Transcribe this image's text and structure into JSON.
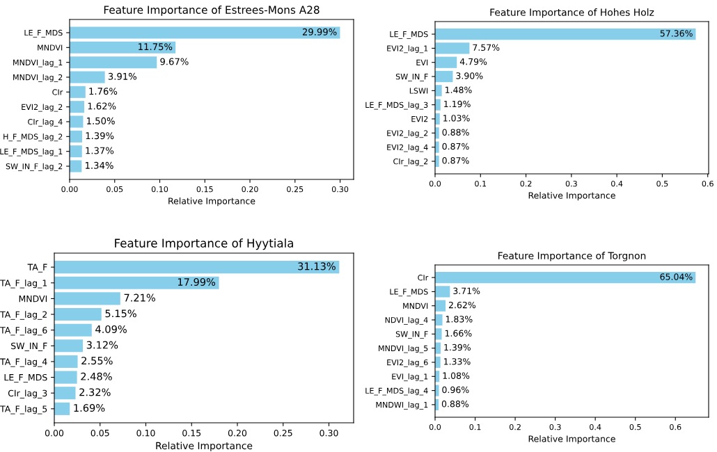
{
  "chart_data": [
    {
      "type": "bar",
      "orientation": "horizontal",
      "title": "Feature Importance of Estrees-Mons A28",
      "xlabel": "Relative Importance",
      "categories": [
        "LE_F_MDS",
        "MNDVI",
        "MNDVI_lag_1",
        "MNDVI_lag_2",
        "CIr",
        "EVI2_lag_2",
        "CIr_lag_4",
        "H_F_MDS_lag_2",
        "LE_F_MDS_lag_1",
        "SW_IN_F_lag_2"
      ],
      "values": [
        0.2999,
        0.1175,
        0.0967,
        0.0391,
        0.0176,
        0.0162,
        0.015,
        0.0139,
        0.0137,
        0.0134
      ],
      "value_labels": [
        "29.99%",
        "11.75%",
        "9.67%",
        "3.91%",
        "1.76%",
        "1.62%",
        "1.50%",
        "1.39%",
        "1.37%",
        "1.34%"
      ],
      "color": "#87ceeb",
      "xlim": [
        0,
        0.315
      ],
      "xticks": [
        {
          "value": 0,
          "label": "0.00"
        },
        0.05,
        {
          "value": 0.1,
          "label": "0.10"
        },
        0.15,
        {
          "value": 0.2,
          "label": "0.20"
        },
        0.25,
        {
          "value": 0.3,
          "label": "0.30"
        }
      ],
      "grid": false,
      "legend": false
    },
    {
      "type": "bar",
      "orientation": "horizontal",
      "title": "Feature Importance of Hohes Holz",
      "xlabel": "Relative Importance",
      "categories": [
        "LE_F_MDS",
        "EVI2_lag_1",
        "EVI",
        "SW_IN_F",
        "LSWI",
        "LE_F_MDS_lag_3",
        "EVI2",
        "EVI2_lag_2",
        "EVI2_lag_4",
        "CIr_lag_2"
      ],
      "values": [
        0.5736,
        0.0757,
        0.0479,
        0.039,
        0.0148,
        0.0119,
        0.0103,
        0.0088,
        0.0087,
        0.0087
      ],
      "value_labels": [
        "57.36%",
        "7.57%",
        "4.79%",
        "3.90%",
        "1.48%",
        "1.19%",
        "1.03%",
        "0.88%",
        "0.87%",
        "0.87%"
      ],
      "color": "#87ceeb",
      "xlim": [
        0,
        0.602
      ],
      "xticks": [
        {
          "value": 0,
          "label": "0.0"
        },
        0.1,
        0.2,
        0.3,
        0.4,
        0.5,
        0.6
      ],
      "grid": false,
      "legend": false
    },
    {
      "type": "bar",
      "orientation": "horizontal",
      "title": "Feature Importance of Hyytiala",
      "xlabel": "Relative Importance",
      "categories": [
        "TA_F",
        "TA_F_lag_1",
        "MNDVI",
        "TA_F_lag_2",
        "TA_F_lag_6",
        "SW_IN_F",
        "TA_F_lag_4",
        "LE_F_MDS",
        "CIr_lag_3",
        "TA_F_lag_5"
      ],
      "values": [
        0.3113,
        0.1799,
        0.0721,
        0.0515,
        0.0409,
        0.0312,
        0.0255,
        0.0248,
        0.0232,
        0.0169
      ],
      "value_labels": [
        "31.13%",
        "17.99%",
        "7.21%",
        "5.15%",
        "4.09%",
        "3.12%",
        "2.55%",
        "2.48%",
        "2.32%",
        "1.69%"
      ],
      "color": "#87ceeb",
      "xlim": [
        0,
        0.327
      ],
      "xticks": [
        {
          "value": 0,
          "label": "0.00"
        },
        0.05,
        {
          "value": 0.1,
          "label": "0.10"
        },
        0.15,
        {
          "value": 0.2,
          "label": "0.20"
        },
        0.25,
        {
          "value": 0.3,
          "label": "0.30"
        }
      ],
      "grid": false,
      "legend": false
    },
    {
      "type": "bar",
      "orientation": "horizontal",
      "title": "Feature Importance of Torgnon",
      "xlabel": "Relative Importance",
      "categories": [
        "CIr",
        "LE_F_MDS",
        "MNDVI",
        "NDVI_lag_4",
        "SW_IN_F",
        "MNDVI_lag_5",
        "EVI2_lag_6",
        "EVI_lag_1",
        "LE_F_MDS_lag_4",
        "MNDWI_lag_1"
      ],
      "values": [
        0.6504,
        0.0371,
        0.0262,
        0.0183,
        0.0166,
        0.0139,
        0.0133,
        0.0108,
        0.0096,
        0.0088
      ],
      "value_labels": [
        "65.04%",
        "3.71%",
        "2.62%",
        "1.83%",
        "1.66%",
        "1.39%",
        "1.33%",
        "1.08%",
        "0.96%",
        "0.88%"
      ],
      "color": "#87ceeb",
      "xlim": [
        0,
        0.683
      ],
      "xticks": [
        {
          "value": 0,
          "label": "0.0"
        },
        0.1,
        0.2,
        0.3,
        0.4,
        0.5,
        0.6
      ],
      "grid": false,
      "legend": false
    }
  ]
}
